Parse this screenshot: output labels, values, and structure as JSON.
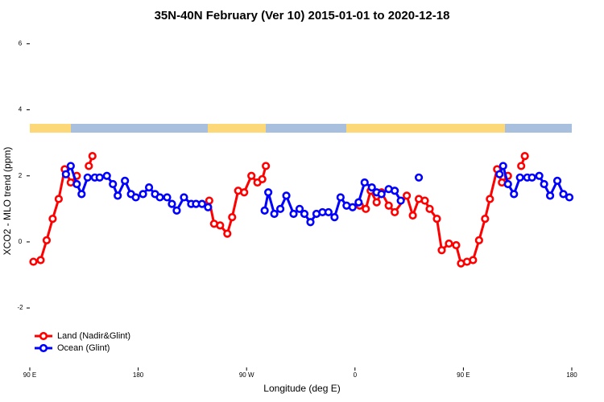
{
  "chart_data": {
    "type": "line",
    "title": "35N-40N February (Ver 10)   2015-01-01 to 2020-12-18",
    "x_label": "Longitude (deg E)",
    "y_label": "XCO2 - MLO trend (ppm)",
    "xlim": [
      90,
      540
    ],
    "xticks": [
      {
        "value": 90,
        "label": "90 E"
      },
      180,
      {
        "value": 270,
        "label": "90 W"
      },
      {
        "value": 360,
        "label": "0"
      },
      {
        "value": 450,
        "label": "90 E"
      },
      {
        "value": 540,
        "label": "180"
      }
    ],
    "ylim": [
      -3.8,
      6.4
    ],
    "yticks": [
      -2,
      0,
      2,
      4,
      6
    ],
    "legend": "bottom-left",
    "series": [
      {
        "name": "Land (Nadir&Glint)",
        "color": "#ff0000",
        "x": [
          93,
          99,
          104,
          109,
          114,
          119,
          124,
          129,
          134,
          139,
          142,
          190,
          239,
          243,
          248,
          254,
          258,
          263,
          268,
          274,
          279,
          283,
          286,
          325,
          364,
          369,
          373,
          378,
          382,
          388,
          393,
          403,
          408,
          413,
          418,
          422,
          428,
          432,
          438,
          444,
          448,
          453,
          458,
          463,
          468,
          472,
          478,
          482,
          487,
          492,
          498,
          501
        ],
        "values": [
          -0.6,
          -0.55,
          0.05,
          0.7,
          1.3,
          2.2,
          1.8,
          2.0,
          null,
          2.3,
          2.6,
          null,
          1.25,
          0.55,
          0.5,
          0.25,
          0.75,
          1.55,
          1.5,
          2.0,
          1.8,
          1.9,
          2.3,
          null,
          1.1,
          1.0,
          1.55,
          1.2,
          1.5,
          1.1,
          0.9,
          1.4,
          0.8,
          1.3,
          1.25,
          1.0,
          0.7,
          -0.25,
          -0.05,
          -0.1,
          -0.65,
          -0.6,
          -0.55,
          0.05,
          0.7,
          1.3,
          2.2,
          1.8,
          2.0,
          null,
          2.3,
          2.6
        ]
      },
      {
        "name": "Ocean (Glint)",
        "color": "#0000ff",
        "x": [
          120,
          124,
          129,
          133,
          138,
          144,
          148,
          154,
          159,
          163,
          169,
          174,
          178,
          184,
          189,
          194,
          198,
          204,
          208,
          212,
          218,
          224,
          228,
          233,
          238,
          260,
          285,
          288,
          293,
          298,
          303,
          309,
          314,
          318,
          323,
          328,
          333,
          338,
          343,
          348,
          353,
          358,
          363,
          368,
          374,
          378,
          382,
          388,
          393,
          398,
          405,
          413,
          450,
          480,
          483,
          487,
          492,
          497,
          503,
          507,
          513,
          517,
          522,
          528,
          533,
          538
        ],
        "values": [
          2.05,
          2.3,
          1.75,
          1.45,
          1.95,
          1.95,
          1.95,
          2.0,
          1.75,
          1.4,
          1.85,
          1.45,
          1.35,
          1.45,
          1.65,
          1.45,
          1.35,
          1.35,
          1.15,
          0.95,
          1.35,
          1.15,
          1.15,
          1.15,
          1.05,
          null,
          0.95,
          1.5,
          0.85,
          1.0,
          1.4,
          0.85,
          1.0,
          0.85,
          0.6,
          0.85,
          0.9,
          0.9,
          0.75,
          1.35,
          1.1,
          1.05,
          1.2,
          1.8,
          1.65,
          1.5,
          1.45,
          1.6,
          1.55,
          1.25,
          null,
          1.95,
          null,
          2.05,
          2.3,
          1.75,
          1.45,
          1.95,
          1.95,
          1.95,
          2.0,
          1.75,
          1.4,
          1.85,
          1.45,
          1.35
        ]
      }
    ]
  }
}
